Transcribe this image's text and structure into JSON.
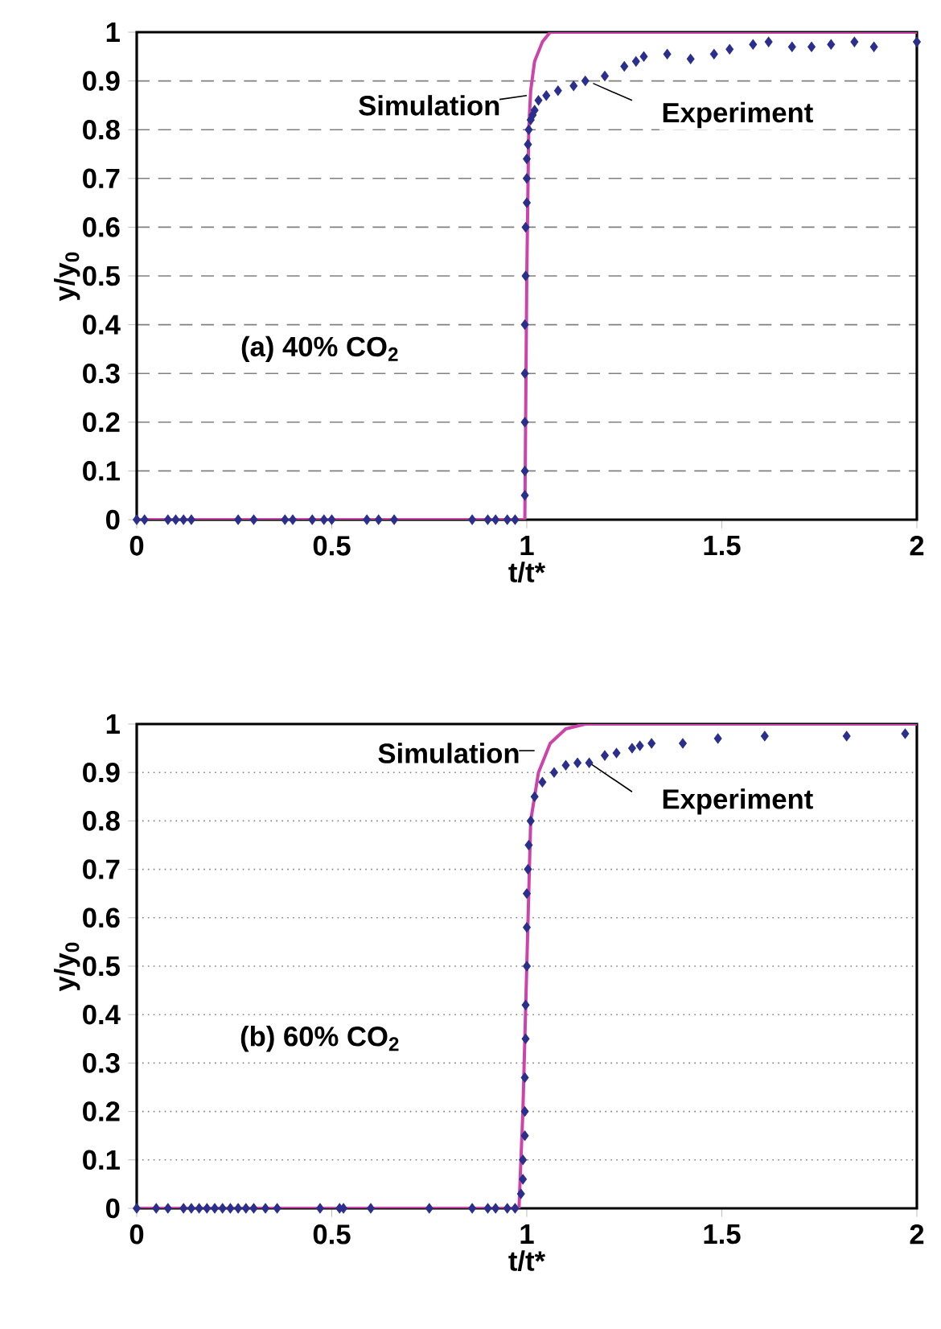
{
  "chart_data": [
    {
      "type": "scatter",
      "xlabel": "t/t*",
      "ylabel": "y/y$_{0}$",
      "xlim": [
        0,
        2
      ],
      "ylim": [
        0,
        1
      ],
      "xticks": [
        0,
        0.5,
        1,
        1.5,
        2
      ],
      "yticks": [
        0,
        0.1,
        0.2,
        0.3,
        0.4,
        0.5,
        0.6,
        0.7,
        0.8,
        0.9,
        1
      ],
      "grid": "y",
      "legend": false,
      "annotations": [
        "(a) 40% CO$_{2}$"
      ],
      "series": [
        {
          "name": "Simulation",
          "type": "line",
          "color": "#cc44aa",
          "marker": "none",
          "line_style": "solid",
          "x": [
            0,
            0.995,
            1.0,
            1.005,
            1.01,
            1.02,
            1.04,
            1.06,
            2
          ],
          "values": [
            0,
            0,
            0.5,
            0.8,
            0.88,
            0.94,
            0.98,
            1,
            1
          ]
        },
        {
          "name": "Experiment",
          "color": "#2b2f8c",
          "marker": "diamond",
          "x": [
            0,
            0.02,
            0.08,
            0.1,
            0.12,
            0.14,
            0.26,
            0.3,
            0.38,
            0.4,
            0.45,
            0.48,
            0.5,
            0.59,
            0.62,
            0.66,
            0.86,
            0.9,
            0.92,
            0.95,
            0.97,
            0.995,
            0.995,
            0.995,
            0.995,
            0.995,
            0.997,
            0.997,
            1.0,
            1.0,
            1.0,
            1.003,
            1.005,
            1.01,
            1.015,
            1.02,
            1.03,
            1.05,
            1.08,
            1.12,
            1.15,
            1.2,
            1.25,
            1.28,
            1.3,
            1.36,
            1.42,
            1.48,
            1.52,
            1.58,
            1.62,
            1.68,
            1.73,
            1.78,
            1.84,
            1.89,
            2.0
          ],
          "values": [
            0,
            0,
            0,
            0,
            0,
            0,
            0,
            0,
            0,
            0,
            0,
            0,
            0,
            0,
            0,
            0,
            0,
            0,
            0,
            0,
            0,
            0.05,
            0.1,
            0.2,
            0.3,
            0.4,
            0.5,
            0.6,
            0.65,
            0.7,
            0.74,
            0.77,
            0.8,
            0.82,
            0.83,
            0.84,
            0.86,
            0.87,
            0.88,
            0.89,
            0.9,
            0.91,
            0.93,
            0.94,
            0.95,
            0.955,
            0.945,
            0.955,
            0.965,
            0.975,
            0.98,
            0.97,
            0.97,
            0.975,
            0.98,
            0.97,
            0.98
          ]
        }
      ]
    },
    {
      "type": "scatter",
      "xlabel": "t/t*",
      "ylabel": "y/y$_{0}$",
      "xlim": [
        0,
        2
      ],
      "ylim": [
        0,
        1
      ],
      "xticks": [
        0,
        0.5,
        1,
        1.5,
        2
      ],
      "yticks": [
        0,
        0.1,
        0.2,
        0.3,
        0.4,
        0.5,
        0.6,
        0.7,
        0.8,
        0.9,
        1
      ],
      "grid": "y",
      "legend": false,
      "annotations": [
        "(b) 60% CO$_{2}$"
      ],
      "series": [
        {
          "name": "Simulation",
          "type": "line",
          "color": "#cc44aa",
          "marker": "none",
          "line_style": "solid",
          "x": [
            0,
            0.98,
            0.99,
            1.0,
            1.01,
            1.03,
            1.06,
            1.1,
            1.15,
            2
          ],
          "values": [
            0,
            0,
            0.2,
            0.5,
            0.8,
            0.9,
            0.96,
            0.99,
            1,
            1
          ]
        },
        {
          "name": "Experiment",
          "color": "#2b2f8c",
          "marker": "diamond",
          "x": [
            0,
            0.05,
            0.08,
            0.12,
            0.14,
            0.16,
            0.18,
            0.2,
            0.22,
            0.24,
            0.26,
            0.28,
            0.3,
            0.33,
            0.36,
            0.47,
            0.52,
            0.53,
            0.6,
            0.75,
            0.86,
            0.9,
            0.92,
            0.95,
            0.97,
            0.985,
            0.99,
            0.99,
            0.995,
            0.995,
            0.995,
            0.997,
            0.997,
            1.0,
            1.0,
            1.0,
            1.003,
            1.005,
            1.01,
            1.02,
            1.04,
            1.07,
            1.1,
            1.13,
            1.16,
            1.2,
            1.23,
            1.27,
            1.29,
            1.32,
            1.4,
            1.49,
            1.61,
            1.82,
            1.97
          ],
          "values": [
            0,
            0,
            0,
            0,
            0,
            0,
            0,
            0,
            0,
            0,
            0,
            0,
            0,
            0,
            0,
            0,
            0,
            0,
            0,
            0,
            0,
            0,
            0,
            0,
            0,
            0.03,
            0.06,
            0.1,
            0.15,
            0.2,
            0.27,
            0.35,
            0.42,
            0.5,
            0.58,
            0.65,
            0.7,
            0.75,
            0.8,
            0.85,
            0.88,
            0.9,
            0.915,
            0.92,
            0.92,
            0.935,
            0.94,
            0.95,
            0.955,
            0.96,
            0.96,
            0.97,
            0.975,
            0.975,
            0.98
          ]
        }
      ]
    }
  ]
}
